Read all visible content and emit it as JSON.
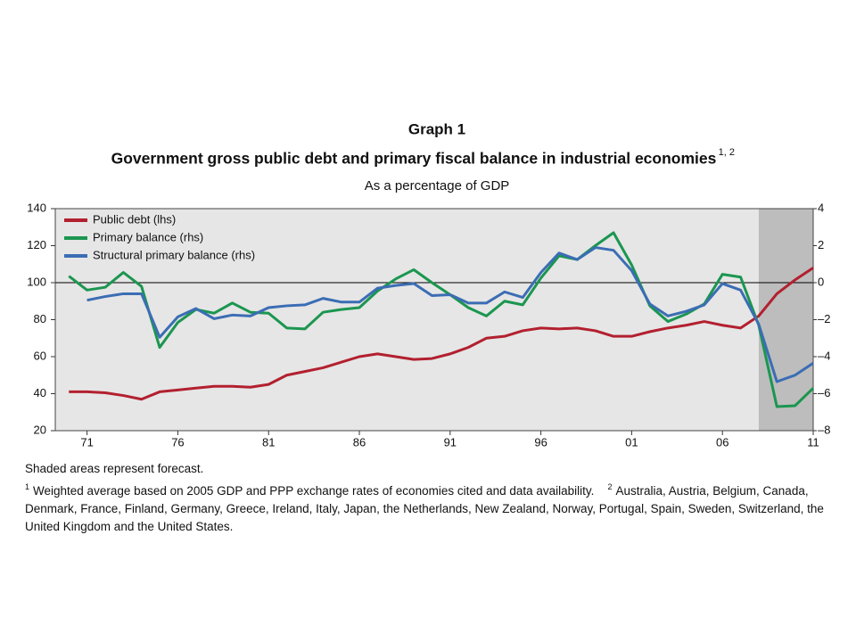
{
  "chart_data": {
    "type": "line",
    "title": "Graph 1",
    "subtitle": "Government gross public debt and primary fiscal balance in industrial economies",
    "subtitle_note": "1, 2",
    "unit_label": "As a percentage of GDP",
    "x": [
      1970,
      1971,
      1972,
      1973,
      1974,
      1975,
      1976,
      1977,
      1978,
      1979,
      1980,
      1981,
      1982,
      1983,
      1984,
      1985,
      1986,
      1987,
      1988,
      1989,
      1990,
      1991,
      1992,
      1993,
      1994,
      1995,
      1996,
      1997,
      1998,
      1999,
      2000,
      2001,
      2002,
      2003,
      2004,
      2005,
      2006,
      2007,
      2008,
      2009,
      2010,
      2011
    ],
    "series": [
      {
        "name": "Public debt (lhs)",
        "color": "#b3202f",
        "axis": "y",
        "values": [
          41,
          41,
          40.5,
          39,
          37,
          41,
          42,
          43,
          44,
          44,
          43.5,
          45,
          50,
          52,
          54,
          57,
          60,
          61.5,
          60,
          58.5,
          59,
          61.5,
          65,
          70,
          71,
          74,
          75.5,
          75,
          75.5,
          74,
          71,
          71,
          73.5,
          75.5,
          77,
          79,
          77,
          75.5,
          82,
          94,
          101.5,
          108
        ]
      },
      {
        "name": "Primary balance (rhs)",
        "color": "#1b9650",
        "axis": "y2",
        "values": [
          0.35,
          -0.4,
          -0.25,
          0.55,
          -0.2,
          -3.5,
          -2.15,
          -1.45,
          -1.65,
          -1.1,
          -1.6,
          -1.65,
          -2.45,
          -2.5,
          -1.6,
          -1.45,
          -1.35,
          -0.45,
          0.2,
          0.7,
          0,
          -0.65,
          -1.35,
          -1.8,
          -1.0,
          -1.2,
          0.25,
          1.45,
          1.25,
          2.0,
          2.7,
          0.95,
          -1.25,
          -2.1,
          -1.7,
          -1.15,
          0.45,
          0.3,
          -2.3,
          -6.7,
          -6.65,
          -5.7
        ]
      },
      {
        "name": "Structural primary balance (rhs)",
        "color": "#3b6db4",
        "axis": "y2",
        "values": [
          null,
          -0.95,
          -0.75,
          -0.6,
          -0.6,
          -2.95,
          -1.85,
          -1.4,
          -1.95,
          -1.75,
          -1.8,
          -1.35,
          -1.25,
          -1.2,
          -0.85,
          -1.05,
          -1.05,
          -0.3,
          -0.15,
          -0.05,
          -0.7,
          -0.65,
          -1.1,
          -1.1,
          -0.5,
          -0.8,
          0.55,
          1.6,
          1.25,
          1.9,
          1.75,
          0.65,
          -1.15,
          -1.8,
          -1.55,
          -1.2,
          -0.05,
          -0.4,
          -2.25,
          -5.35,
          -5.0,
          -4.35
        ]
      }
    ],
    "forecast_span": [
      2008,
      2011
    ],
    "xlim": [
      1969.25,
      2011
    ],
    "xticks": [
      {
        "value": 1971,
        "label": "71"
      },
      {
        "value": 1976,
        "label": "76"
      },
      {
        "value": 1981,
        "label": "81"
      },
      {
        "value": 1986,
        "label": "86"
      },
      {
        "value": 1991,
        "label": "91"
      },
      {
        "value": 1996,
        "label": "96"
      },
      {
        "value": 2001,
        "label": "01"
      },
      {
        "value": 2006,
        "label": "06"
      },
      {
        "value": 2011,
        "label": "11"
      }
    ],
    "ylim": [
      20,
      140
    ],
    "yticks": [
      20,
      40,
      60,
      80,
      100,
      120,
      140
    ],
    "y2lim": [
      -8,
      4
    ],
    "y2ticks": [
      {
        "value": -8,
        "label": "–8"
      },
      {
        "value": -6,
        "label": "–6"
      },
      {
        "value": -4,
        "label": "–4"
      },
      {
        "value": -2,
        "label": "–2"
      },
      0,
      2,
      4
    ],
    "legend": "upper left",
    "source_note": "Shaded areas represent forecast.",
    "footnotes": [
      {
        "mark": "1",
        "text": "Weighted average based on 2005 GDP and PPP exchange rates of economies cited and data availability."
      },
      {
        "mark": "2",
        "text": "Australia, Austria, Belgium, Canada, Denmark, France, Finland, Germany, Greece, Ireland, Italy, Japan, the Netherlands, New Zealand, Norway, Portugal, Spain, Sweden, Switzerland, the United Kingdom and the United States."
      }
    ]
  }
}
